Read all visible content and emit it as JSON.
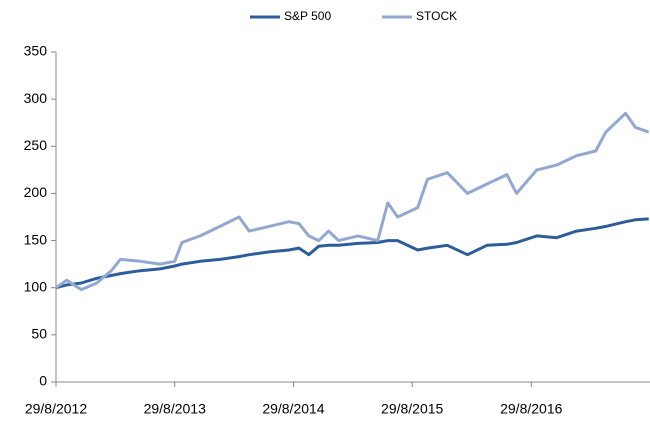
{
  "chart_data": {
    "type": "line",
    "x": [
      "2012-08-29",
      "2012-10-01",
      "2012-11-15",
      "2013-01-01",
      "2013-02-15",
      "2013-03-15",
      "2013-05-15",
      "2013-07-15",
      "2013-08-29",
      "2013-09-20",
      "2013-11-15",
      "2014-01-15",
      "2014-03-15",
      "2014-04-15",
      "2014-06-15",
      "2014-08-15",
      "2014-09-15",
      "2014-10-15",
      "2014-11-15",
      "2014-12-15",
      "2015-01-15",
      "2015-03-15",
      "2015-05-15",
      "2015-06-15",
      "2015-07-15",
      "2015-09-15",
      "2015-10-15",
      "2015-12-15",
      "2016-02-15",
      "2016-04-15",
      "2016-06-15",
      "2016-07-15",
      "2016-09-15",
      "2016-11-15",
      "2017-01-15",
      "2017-03-15",
      "2017-04-15",
      "2017-06-15",
      "2017-07-15",
      "2017-08-25"
    ],
    "series": [
      {
        "name": "S&P 500",
        "color": "#2e5e9a",
        "values": [
          100,
          103,
          105,
          110,
          113,
          115,
          118,
          120,
          123,
          125,
          128,
          130,
          133,
          135,
          138,
          140,
          142,
          135,
          144,
          145,
          145,
          147,
          148,
          150,
          150,
          140,
          142,
          145,
          135,
          145,
          146,
          148,
          155,
          153,
          160,
          163,
          165,
          170,
          172,
          173
        ]
      },
      {
        "name": "STOCK",
        "color": "#92a8d1",
        "values": [
          100,
          108,
          98,
          105,
          118,
          130,
          128,
          125,
          128,
          148,
          155,
          165,
          175,
          160,
          165,
          170,
          168,
          155,
          150,
          160,
          150,
          155,
          150,
          190,
          175,
          185,
          215,
          222,
          200,
          210,
          220,
          200,
          225,
          230,
          240,
          245,
          265,
          285,
          270,
          265
        ]
      }
    ],
    "xlim": [
      "2012-08-29",
      "2017-08-29"
    ],
    "xticks": [
      {
        "value": "2012-08-29",
        "label": "29/8/2012"
      },
      {
        "value": "2013-08-29",
        "label": "29/8/2013"
      },
      {
        "value": "2014-08-29",
        "label": "29/8/2014"
      },
      {
        "value": "2015-08-29",
        "label": "29/8/2015"
      },
      {
        "value": "2016-08-29",
        "label": "29/8/2016"
      }
    ],
    "ylim": [
      0,
      350
    ],
    "yticks": [
      0,
      50,
      100,
      150,
      200,
      250,
      300,
      350
    ],
    "legend": "top"
  }
}
